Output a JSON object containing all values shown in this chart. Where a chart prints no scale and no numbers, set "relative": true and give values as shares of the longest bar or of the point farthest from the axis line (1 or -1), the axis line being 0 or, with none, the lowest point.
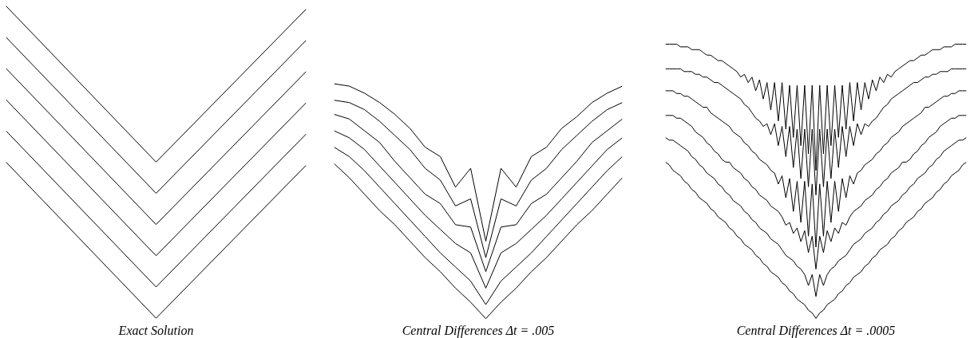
{
  "chart_data": [
    {
      "type": "line",
      "title": "Exact Solution",
      "relative": true,
      "categories": [
        null,
        null,
        null
      ],
      "series": [
        {
          "color": "#000000",
          "values": [
            1,
            0.5,
            0.99
          ]
        },
        {
          "color": "#000000",
          "values": [
            0.9,
            0.4,
            0.89
          ]
        },
        {
          "color": "#000000",
          "values": [
            0.8,
            0.3,
            0.79
          ]
        },
        {
          "color": "#000000",
          "values": [
            0.7,
            0.2,
            0.69
          ]
        },
        {
          "color": "#000000",
          "values": [
            0.6,
            0.1,
            0.59
          ]
        },
        {
          "color": "#000000",
          "values": [
            0.5,
            0,
            0.49
          ]
        }
      ]
    },
    {
      "type": "line",
      "title": "Central Differences Δt = .005",
      "relative": true,
      "categories": [
        null,
        null,
        null,
        null,
        null,
        null,
        null,
        null,
        null,
        null,
        null,
        null,
        null,
        null,
        null,
        null,
        null,
        null,
        null,
        null
      ],
      "series": [
        {
          "color": "#000000",
          "values": [
            1,
            0.99,
            0.96,
            0.92,
            0.87,
            0.81,
            0.73,
            0.69,
            0.56,
            0.64,
            0.33,
            0.64,
            0.56,
            0.69,
            0.73,
            0.81,
            0.86,
            0.92,
            0.96,
            0.99
          ]
        },
        {
          "color": "#000000",
          "values": [
            0.93,
            0.92,
            0.89,
            0.84,
            0.78,
            0.72,
            0.64,
            0.59,
            0.48,
            0.51,
            0.26,
            0.51,
            0.48,
            0.59,
            0.64,
            0.72,
            0.78,
            0.84,
            0.89,
            0.92
          ]
        },
        {
          "color": "#000000",
          "values": [
            0.87,
            0.85,
            0.8,
            0.75,
            0.67,
            0.6,
            0.53,
            0.49,
            0.4,
            0.39,
            0.2,
            0.39,
            0.4,
            0.49,
            0.53,
            0.6,
            0.67,
            0.75,
            0.8,
            0.85
          ]
        },
        {
          "color": "#000000",
          "values": [
            0.8,
            0.77,
            0.72,
            0.65,
            0.58,
            0.51,
            0.44,
            0.38,
            0.32,
            0.28,
            0.13,
            0.28,
            0.32,
            0.38,
            0.44,
            0.51,
            0.58,
            0.65,
            0.72,
            0.77
          ]
        },
        {
          "color": "#000000",
          "values": [
            0.73,
            0.69,
            0.63,
            0.56,
            0.49,
            0.42,
            0.35,
            0.28,
            0.22,
            0.16,
            0.06,
            0.16,
            0.22,
            0.28,
            0.35,
            0.42,
            0.49,
            0.56,
            0.63,
            0.69
          ]
        },
        {
          "color": "#000000",
          "values": [
            0.66,
            0.6,
            0.53,
            0.46,
            0.4,
            0.33,
            0.26,
            0.2,
            0.13,
            0.07,
            0,
            0.07,
            0.13,
            0.2,
            0.26,
            0.33,
            0.4,
            0.46,
            0.53,
            0.6
          ]
        }
      ]
    },
    {
      "type": "line",
      "title": "Central Differences Δt = .0005",
      "relative": true,
      "categories": [
        null,
        null,
        null,
        null,
        null,
        null,
        null,
        null,
        null,
        null,
        null,
        null,
        null,
        null,
        null,
        null,
        null,
        null,
        null,
        null,
        null,
        null,
        null,
        null,
        null,
        null,
        null,
        null,
        null,
        null,
        null,
        null,
        null,
        null,
        null,
        null,
        null,
        null,
        null,
        null,
        null,
        null,
        null,
        null,
        null,
        null,
        null,
        null,
        null,
        null,
        null,
        null,
        null,
        null,
        null,
        null,
        null,
        null,
        null,
        null,
        null,
        null,
        null,
        null,
        null,
        null,
        null,
        null,
        null,
        null,
        null,
        null,
        null,
        null,
        null,
        null,
        null,
        null,
        null,
        null,
        null
      ],
      "series": [
        {
          "color": "#000000",
          "values": [
            1,
            1,
            1,
            1,
            0.99,
            0.99,
            0.99,
            0.98,
            0.98,
            0.98,
            0.97,
            0.96,
            0.96,
            0.95,
            0.94,
            0.94,
            0.93,
            0.92,
            0.91,
            0.9,
            0.88,
            0.89,
            0.86,
            0.88,
            0.83,
            0.87,
            0.8,
            0.86,
            0.76,
            0.86,
            0.72,
            0.86,
            0.69,
            0.85,
            0.66,
            0.85,
            0.63,
            0.85,
            0.6,
            0.85,
            0.54,
            0.85,
            0.6,
            0.85,
            0.63,
            0.85,
            0.66,
            0.85,
            0.69,
            0.86,
            0.72,
            0.86,
            0.76,
            0.86,
            0.8,
            0.87,
            0.83,
            0.88,
            0.86,
            0.89,
            0.88,
            0.9,
            0.91,
            0.92,
            0.93,
            0.94,
            0.94,
            0.95,
            0.96,
            0.96,
            0.97,
            0.98,
            0.98,
            0.98,
            0.99,
            0.99,
            0.99,
            1,
            1,
            1,
            1
          ]
        },
        {
          "color": "#000000",
          "values": [
            0.91,
            0.91,
            0.91,
            0.91,
            0.91,
            0.9,
            0.9,
            0.9,
            0.89,
            0.89,
            0.88,
            0.88,
            0.87,
            0.86,
            0.86,
            0.85,
            0.84,
            0.83,
            0.82,
            0.81,
            0.8,
            0.78,
            0.77,
            0.75,
            0.73,
            0.72,
            0.7,
            0.71,
            0.67,
            0.71,
            0.63,
            0.7,
            0.59,
            0.7,
            0.55,
            0.69,
            0.51,
            0.69,
            0.48,
            0.69,
            0.45,
            0.69,
            0.48,
            0.69,
            0.51,
            0.69,
            0.55,
            0.7,
            0.59,
            0.7,
            0.63,
            0.71,
            0.67,
            0.71,
            0.7,
            0.72,
            0.73,
            0.75,
            0.77,
            0.78,
            0.8,
            0.81,
            0.82,
            0.83,
            0.84,
            0.85,
            0.86,
            0.86,
            0.87,
            0.88,
            0.88,
            0.89,
            0.89,
            0.9,
            0.9,
            0.9,
            0.91,
            0.91,
            0.91,
            0.91,
            0.91
          ]
        },
        {
          "color": "#000000",
          "values": [
            0.83,
            0.83,
            0.83,
            0.82,
            0.82,
            0.81,
            0.81,
            0.8,
            0.79,
            0.78,
            0.77,
            0.77,
            0.75,
            0.74,
            0.73,
            0.72,
            0.71,
            0.7,
            0.68,
            0.67,
            0.66,
            0.64,
            0.63,
            0.61,
            0.6,
            0.58,
            0.57,
            0.56,
            0.54,
            0.53,
            0.49,
            0.52,
            0.44,
            0.51,
            0.39,
            0.5,
            0.35,
            0.5,
            0.3,
            0.49,
            0.26,
            0.49,
            0.3,
            0.5,
            0.35,
            0.5,
            0.39,
            0.51,
            0.44,
            0.52,
            0.49,
            0.53,
            0.54,
            0.56,
            0.57,
            0.58,
            0.6,
            0.61,
            0.63,
            0.64,
            0.66,
            0.67,
            0.68,
            0.7,
            0.71,
            0.72,
            0.73,
            0.74,
            0.75,
            0.77,
            0.77,
            0.78,
            0.79,
            0.8,
            0.81,
            0.81,
            0.82,
            0.82,
            0.83,
            0.83,
            0.83
          ]
        },
        {
          "color": "#000000",
          "values": [
            0.74,
            0.74,
            0.74,
            0.73,
            0.73,
            0.72,
            0.71,
            0.7,
            0.68,
            0.67,
            0.66,
            0.64,
            0.63,
            0.61,
            0.6,
            0.58,
            0.57,
            0.57,
            0.55,
            0.54,
            0.53,
            0.51,
            0.5,
            0.48,
            0.47,
            0.45,
            0.44,
            0.43,
            0.41,
            0.4,
            0.39,
            0.37,
            0.34,
            0.35,
            0.31,
            0.33,
            0.28,
            0.32,
            0.24,
            0.3,
            0.18,
            0.3,
            0.24,
            0.32,
            0.28,
            0.33,
            0.31,
            0.35,
            0.34,
            0.37,
            0.39,
            0.4,
            0.41,
            0.43,
            0.44,
            0.45,
            0.47,
            0.48,
            0.5,
            0.51,
            0.53,
            0.54,
            0.55,
            0.57,
            0.57,
            0.58,
            0.6,
            0.61,
            0.63,
            0.64,
            0.66,
            0.67,
            0.68,
            0.7,
            0.71,
            0.72,
            0.73,
            0.73,
            0.74,
            0.74,
            0.74
          ]
        },
        {
          "color": "#000000",
          "values": [
            0.66,
            0.65,
            0.65,
            0.64,
            0.63,
            0.62,
            0.61,
            0.59,
            0.58,
            0.56,
            0.55,
            0.53,
            0.52,
            0.51,
            0.49,
            0.48,
            0.46,
            0.45,
            0.43,
            0.42,
            0.41,
            0.39,
            0.38,
            0.36,
            0.35,
            0.33,
            0.32,
            0.31,
            0.29,
            0.28,
            0.27,
            0.25,
            0.23,
            0.22,
            0.21,
            0.19,
            0.18,
            0.16,
            0.12,
            0.16,
            0.08,
            0.16,
            0.12,
            0.16,
            0.18,
            0.19,
            0.21,
            0.22,
            0.23,
            0.25,
            0.27,
            0.28,
            0.29,
            0.31,
            0.32,
            0.33,
            0.35,
            0.36,
            0.38,
            0.39,
            0.41,
            0.42,
            0.43,
            0.45,
            0.46,
            0.48,
            0.49,
            0.51,
            0.52,
            0.53,
            0.55,
            0.56,
            0.58,
            0.59,
            0.61,
            0.62,
            0.63,
            0.64,
            0.65,
            0.65,
            0.66
          ]
        },
        {
          "color": "#000000",
          "values": [
            0.57,
            0.56,
            0.54,
            0.53,
            0.52,
            0.5,
            0.49,
            0.47,
            0.46,
            0.44,
            0.43,
            0.42,
            0.4,
            0.39,
            0.37,
            0.36,
            0.35,
            0.33,
            0.32,
            0.3,
            0.29,
            0.27,
            0.26,
            0.25,
            0.23,
            0.22,
            0.2,
            0.19,
            0.17,
            0.16,
            0.15,
            0.13,
            0.12,
            0.1,
            0.09,
            0.07,
            0.06,
            0.05,
            0.03,
            0.02,
            0,
            0.02,
            0.03,
            0.05,
            0.06,
            0.07,
            0.09,
            0.1,
            0.12,
            0.13,
            0.15,
            0.16,
            0.17,
            0.19,
            0.2,
            0.22,
            0.23,
            0.25,
            0.26,
            0.27,
            0.29,
            0.3,
            0.32,
            0.33,
            0.35,
            0.36,
            0.37,
            0.39,
            0.4,
            0.42,
            0.43,
            0.44,
            0.46,
            0.47,
            0.49,
            0.5,
            0.52,
            0.53,
            0.54,
            0.56,
            0.57
          ]
        }
      ]
    }
  ]
}
